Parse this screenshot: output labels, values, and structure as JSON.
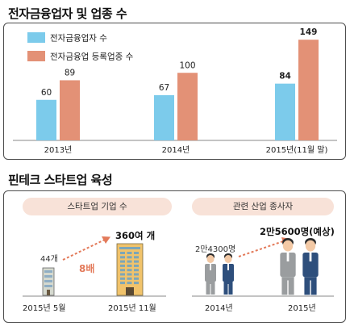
{
  "chart_data": {
    "type": "bar",
    "title": "전자금융업자 및 업종 수",
    "categories": [
      "2013년",
      "2014년",
      "2015년(11월 말)"
    ],
    "series": [
      {
        "name": "전자금융업자 수",
        "values": [
          60,
          67,
          84
        ],
        "color": "#7ccbeb"
      },
      {
        "name": "전자금융업 등록업종 수",
        "values": [
          89,
          100,
          149
        ],
        "color": "#e39176"
      }
    ],
    "ylim": [
      0,
      160
    ],
    "legend": "top-left",
    "grid": false
  },
  "section2": {
    "title": "핀테크 스타트업 육성",
    "startups": {
      "label": "스타트업 기업 수",
      "before_value": "44개",
      "after_value": "360여 개",
      "multiplier": "8배",
      "before_date": "2015년 5월",
      "after_date": "2015년 11월"
    },
    "employees": {
      "label": "관련 산업 종사자",
      "before_value": "2만4300명",
      "after_value": "2만5600명(예상)",
      "before_year": "2014년",
      "after_year": "2015년"
    }
  },
  "colors": {
    "blue": "#7ccbeb",
    "salmon": "#e39176",
    "arrow": "#e37a5a",
    "pill_bg": "#f8e2d8"
  }
}
